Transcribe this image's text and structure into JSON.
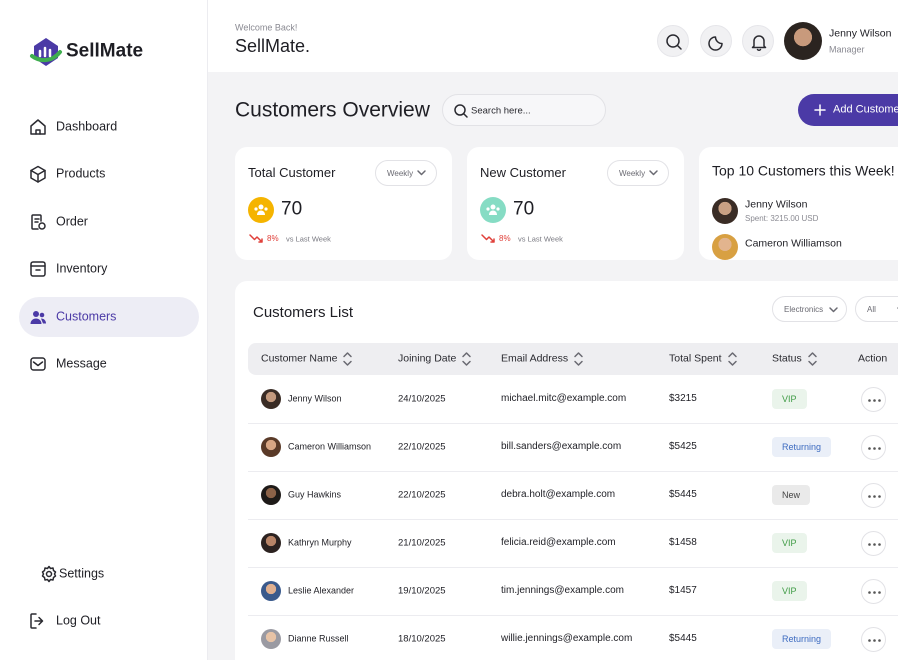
{
  "brand": "SellMate",
  "nav": [
    "Dashboard",
    "Products",
    "Order",
    "Inventory",
    "Customers",
    "Message"
  ],
  "nav_bottom": [
    "Settings",
    "Log Out"
  ],
  "header": {
    "greeting": "Welcome Back!",
    "title": "SellMate.",
    "user_name": "Jenny Wilson",
    "user_role": "Manager"
  },
  "page_title": "Customers Overview",
  "search_placeholder": "Search here...",
  "add_button": "Add Customer",
  "stats": [
    {
      "title": "Total Customer",
      "period": "Weekly",
      "value": 70,
      "change": "8%",
      "compare": "vs Last Week",
      "color": "#f5b400"
    },
    {
      "title": "New Customer",
      "period": "Weekly",
      "value": 70,
      "change": "8%",
      "compare": "vs Last Week",
      "color": "#86dcc4"
    }
  ],
  "top_customers": {
    "title": "Top 10 Customers this Week!",
    "items": [
      {
        "name": "Jenny Wilson",
        "spent": "Spent: 3215.00 USD"
      },
      {
        "name": "Cameron Williamson"
      }
    ]
  },
  "customers_list": {
    "title": "Customers List",
    "filters": [
      "Electronics",
      "All"
    ],
    "columns": [
      "Customer Name",
      "Joining Date",
      "Email Address",
      "Total Spent",
      "Status",
      "Action"
    ],
    "status_colors": {
      "VIP": "#3f9b45",
      "Returning": "#3d6bc0",
      "New": "#444444"
    },
    "rows": [
      {
        "name": "Jenny Wilson",
        "date": "24/10/2025",
        "email": "michael.mitc@example.com",
        "spent": "$3215",
        "status": "VIP"
      },
      {
        "name": "Cameron Williamson",
        "date": "22/10/2025",
        "email": "bill.sanders@example.com",
        "spent": "$5425",
        "status": "Returning"
      },
      {
        "name": "Guy Hawkins",
        "date": "22/10/2025",
        "email": "debra.holt@example.com",
        "spent": "$5445",
        "status": "New"
      },
      {
        "name": "Kathryn Murphy",
        "date": "21/10/2025",
        "email": "felicia.reid@example.com",
        "spent": "$1458",
        "status": "VIP"
      },
      {
        "name": "Leslie Alexander",
        "date": "19/10/2025",
        "email": "tim.jennings@example.com",
        "spent": "$1457",
        "status": "VIP"
      },
      {
        "name": "Dianne Russell",
        "date": "18/10/2025",
        "email": "willie.jennings@example.com",
        "spent": "$5445",
        "status": "Returning"
      }
    ]
  }
}
